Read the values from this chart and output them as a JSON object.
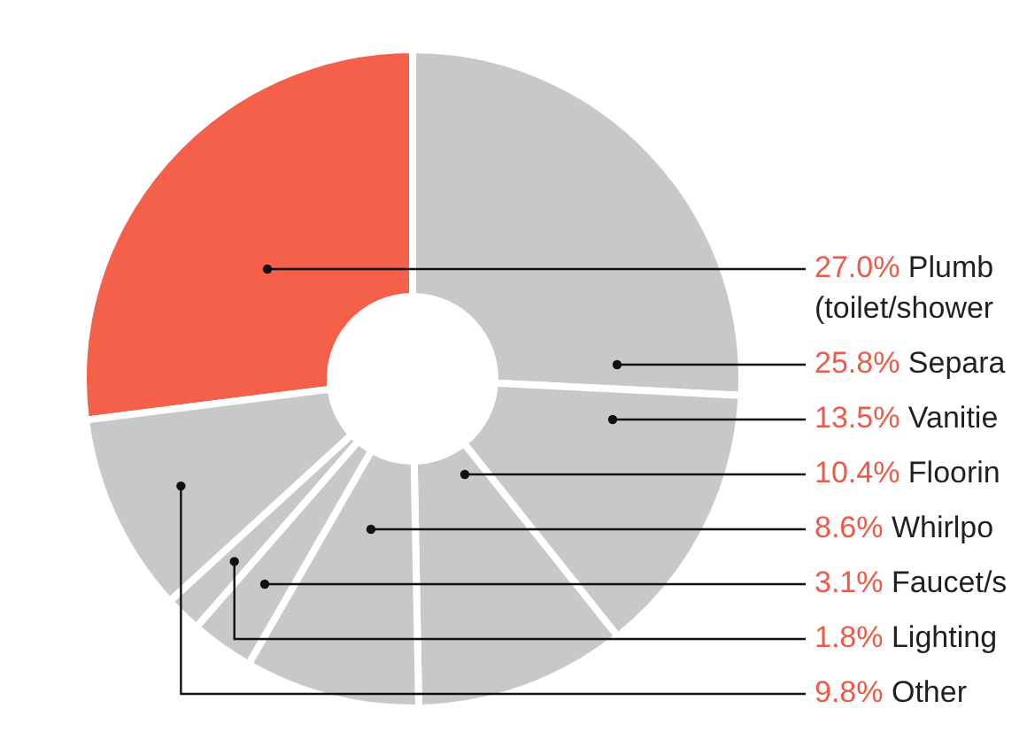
{
  "chart_data": {
    "type": "donut",
    "categories": [
      "Plumb (toilet/shower",
      "Separa",
      "Vanitie",
      "Floorin",
      "Whirlpo",
      "Faucet/s",
      "Lighting",
      "Other"
    ],
    "values": [
      27.0,
      25.8,
      13.5,
      10.4,
      8.6,
      3.1,
      1.8,
      9.8
    ],
    "value_labels": [
      "27.0%",
      "25.8%",
      "13.5%",
      "10.4%",
      "8.6%",
      "3.1%",
      "1.8%",
      "9.8%"
    ],
    "colors": [
      "#f4604a",
      "#c7c8ca",
      "#c7c8ca",
      "#c7c8ca",
      "#c7c8ca",
      "#c7c8ca",
      "#c7c8ca",
      "#c7c8ca"
    ]
  }
}
